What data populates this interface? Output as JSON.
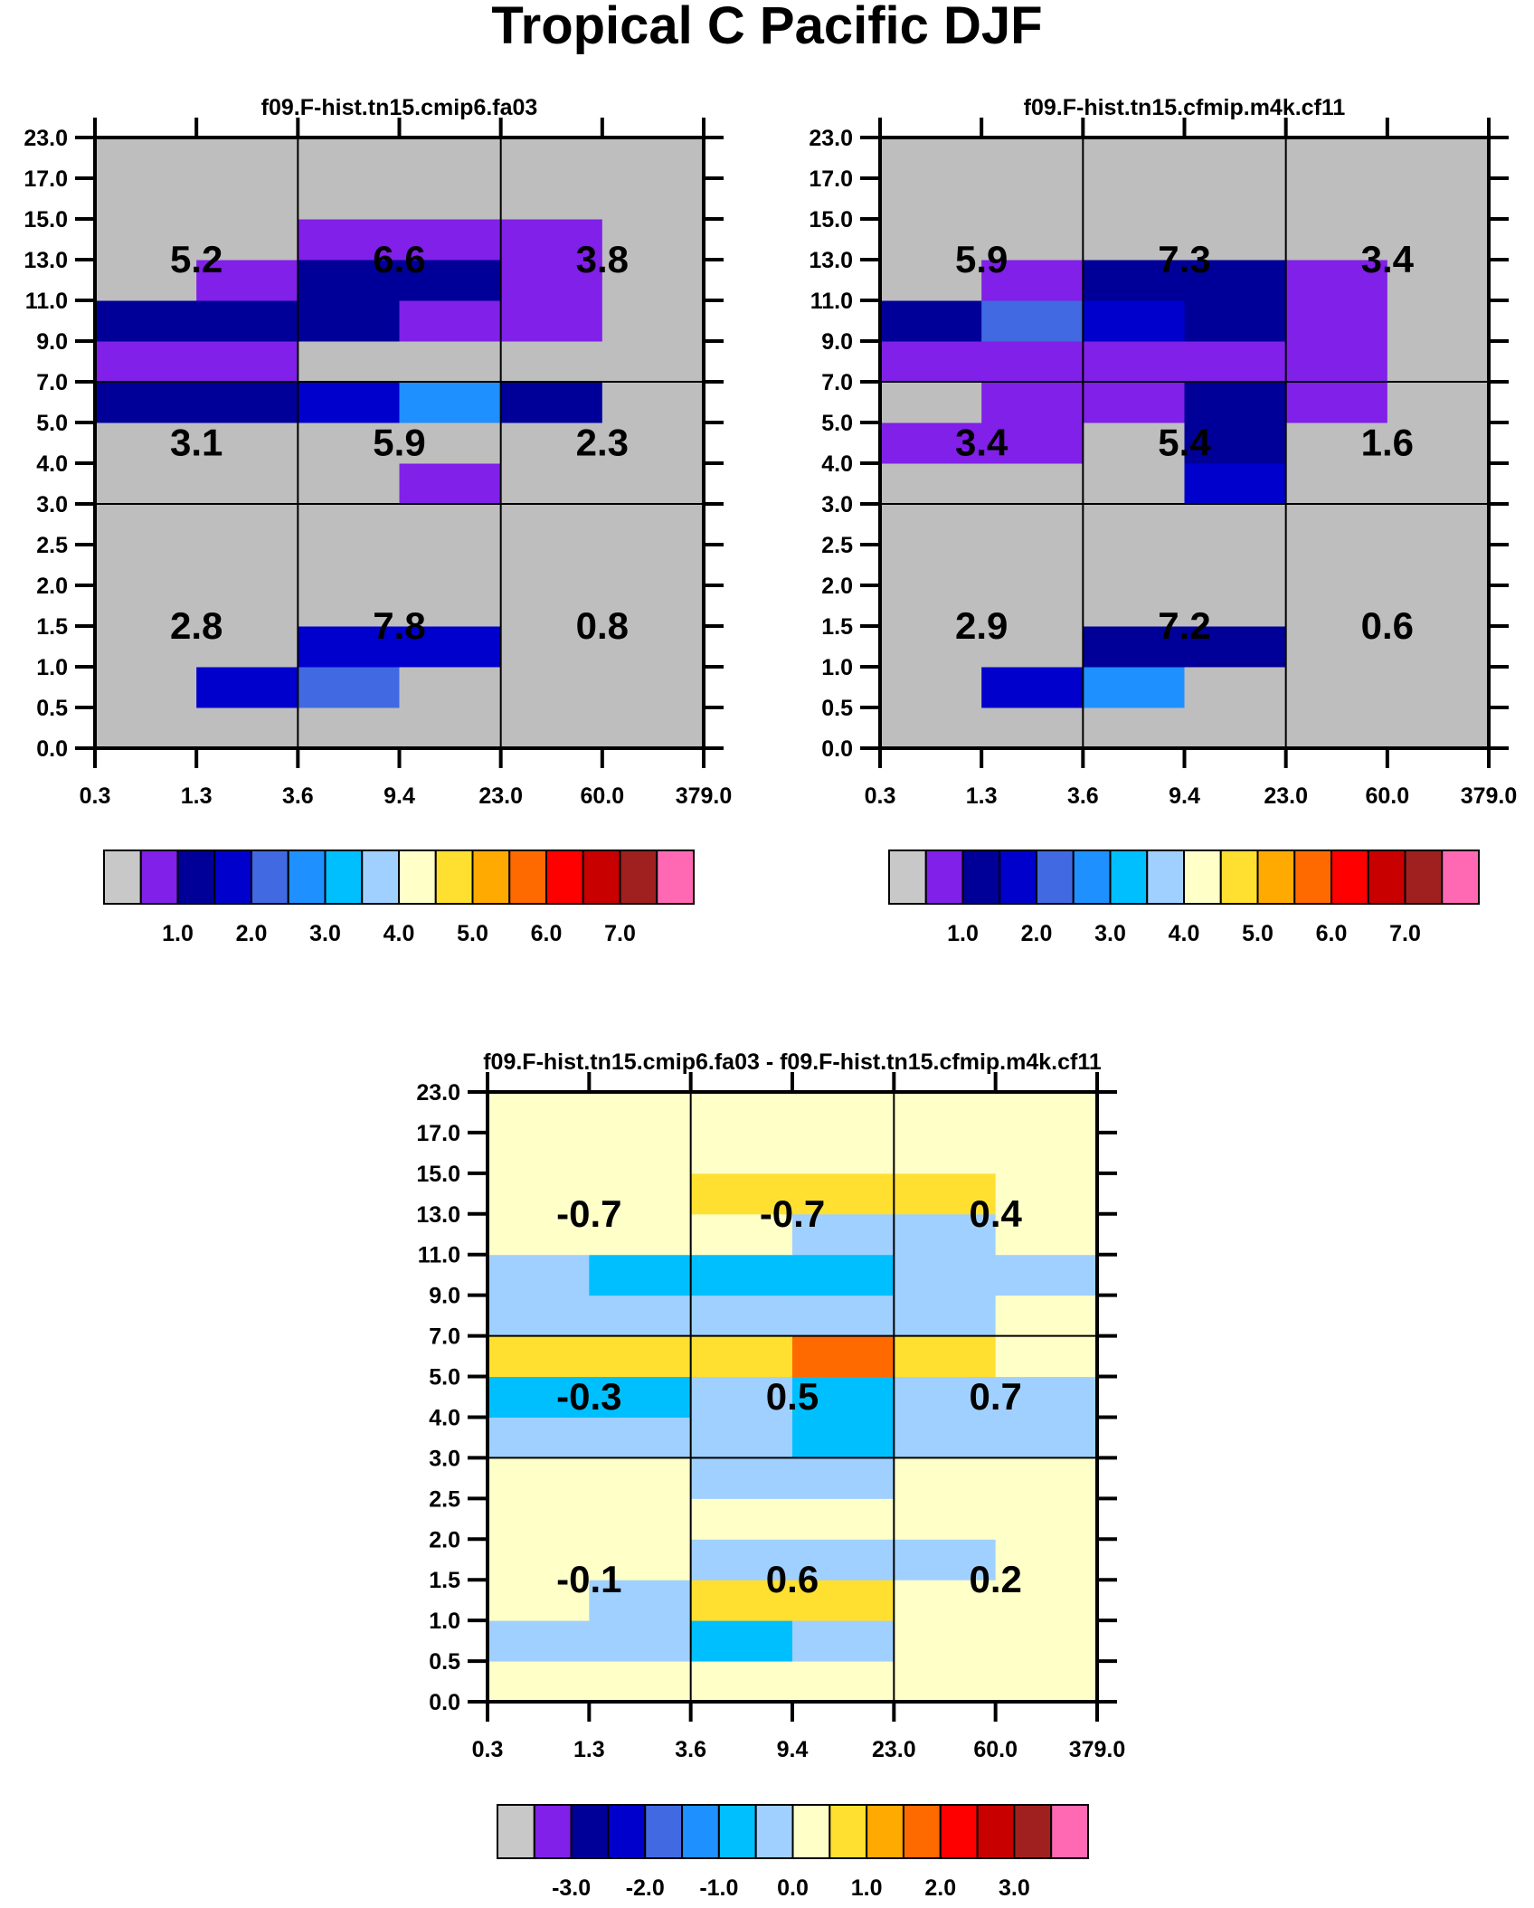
{
  "title": "Tropical C Pacific DJF",
  "palette": [
    "#C8C8C8",
    "#8020E8",
    "#000099",
    "#0000CC",
    "#4169E1",
    "#1E90FF",
    "#00BFFF",
    "#A0D0FF",
    "#FFFFC8",
    "#FFE030",
    "#FFAA00",
    "#FF6A00",
    "#FF0000",
    "#C80000",
    "#A02020",
    "#FF69B4"
  ],
  "plot_background": "#BEBEBE",
  "chart_data": [
    {
      "type": "heatmap",
      "title": "f09.F-hist.tn15.cmip6.fa03",
      "x_ticks": [
        "0.3",
        "1.3",
        "3.6",
        "9.4",
        "23.0",
        "60.0",
        "379.0"
      ],
      "y_ticks": [
        "0.0",
        "0.5",
        "1.0",
        "1.5",
        "2.0",
        "2.5",
        "3.0",
        "4.0",
        "5.0",
        "7.0",
        "9.0",
        "11.0",
        "13.0",
        "15.0",
        "17.0",
        "23.0"
      ],
      "cells_bottom_to_top": [
        [
          0,
          0,
          0,
          0,
          0,
          0
        ],
        [
          0,
          3,
          4,
          0,
          0,
          0
        ],
        [
          0,
          0,
          3,
          3,
          0,
          0
        ],
        [
          0,
          0,
          0,
          0,
          0,
          0
        ],
        [
          0,
          0,
          0,
          0,
          0,
          0
        ],
        [
          0,
          0,
          0,
          0,
          0,
          0
        ],
        [
          0,
          0,
          0,
          1,
          0,
          0
        ],
        [
          0,
          0,
          0,
          0,
          0,
          0
        ],
        [
          2,
          2,
          3,
          5,
          2,
          0
        ],
        [
          1,
          1,
          0,
          0,
          0,
          0
        ],
        [
          2,
          2,
          2,
          1,
          1,
          0
        ],
        [
          0,
          1,
          2,
          2,
          1,
          0
        ],
        [
          0,
          0,
          1,
          1,
          1,
          0
        ],
        [
          0,
          0,
          0,
          0,
          0,
          0
        ],
        [
          0,
          0,
          0,
          0,
          0,
          0
        ]
      ],
      "region_values_top_to_bottom": [
        [
          "5.2",
          "6.6",
          "3.8"
        ],
        [
          "3.1",
          "5.9",
          "2.3"
        ],
        [
          "2.8",
          "7.8",
          "0.8"
        ]
      ],
      "colorbar_labels": [
        "1.0",
        "2.0",
        "3.0",
        "4.0",
        "5.0",
        "6.0",
        "7.0"
      ]
    },
    {
      "type": "heatmap",
      "title": "f09.F-hist.tn15.cfmip.m4k.cf11",
      "x_ticks": [
        "0.3",
        "1.3",
        "3.6",
        "9.4",
        "23.0",
        "60.0",
        "379.0"
      ],
      "y_ticks": [
        "0.0",
        "0.5",
        "1.0",
        "1.5",
        "2.0",
        "2.5",
        "3.0",
        "4.0",
        "5.0",
        "7.0",
        "9.0",
        "11.0",
        "13.0",
        "15.0",
        "17.0",
        "23.0"
      ],
      "cells_bottom_to_top": [
        [
          0,
          0,
          0,
          0,
          0,
          0
        ],
        [
          0,
          3,
          5,
          0,
          0,
          0
        ],
        [
          0,
          0,
          2,
          2,
          0,
          0
        ],
        [
          0,
          0,
          0,
          0,
          0,
          0
        ],
        [
          0,
          0,
          0,
          0,
          0,
          0
        ],
        [
          0,
          0,
          0,
          0,
          0,
          0
        ],
        [
          0,
          0,
          0,
          3,
          0,
          0
        ],
        [
          1,
          1,
          0,
          2,
          0,
          0
        ],
        [
          0,
          1,
          1,
          2,
          1,
          0
        ],
        [
          1,
          1,
          1,
          1,
          1,
          0
        ],
        [
          2,
          4,
          3,
          2,
          1,
          0
        ],
        [
          0,
          1,
          2,
          2,
          1,
          0
        ],
        [
          0,
          0,
          0,
          0,
          0,
          0
        ],
        [
          0,
          0,
          0,
          0,
          0,
          0
        ],
        [
          0,
          0,
          0,
          0,
          0,
          0
        ]
      ],
      "region_values_top_to_bottom": [
        [
          "5.9",
          "7.3",
          "3.4"
        ],
        [
          "3.4",
          "5.4",
          "1.6"
        ],
        [
          "2.9",
          "7.2",
          "0.6"
        ]
      ],
      "colorbar_labels": [
        "1.0",
        "2.0",
        "3.0",
        "4.0",
        "5.0",
        "6.0",
        "7.0"
      ]
    },
    {
      "type": "heatmap",
      "title": "f09.F-hist.tn15.cmip6.fa03 - f09.F-hist.tn15.cfmip.m4k.cf11",
      "x_ticks": [
        "0.3",
        "1.3",
        "3.6",
        "9.4",
        "23.0",
        "60.0",
        "379.0"
      ],
      "y_ticks": [
        "0.0",
        "0.5",
        "1.0",
        "1.5",
        "2.0",
        "2.5",
        "3.0",
        "4.0",
        "5.0",
        "7.0",
        "9.0",
        "11.0",
        "13.0",
        "15.0",
        "17.0",
        "23.0"
      ],
      "cells_bottom_to_top": [
        [
          8,
          8,
          8,
          8,
          8,
          8
        ],
        [
          7,
          7,
          6,
          7,
          8,
          8
        ],
        [
          8,
          7,
          9,
          9,
          8,
          8
        ],
        [
          8,
          8,
          7,
          7,
          7,
          8
        ],
        [
          8,
          8,
          8,
          8,
          8,
          8
        ],
        [
          8,
          8,
          7,
          7,
          8,
          8
        ],
        [
          7,
          7,
          7,
          6,
          7,
          7
        ],
        [
          6,
          6,
          7,
          6,
          7,
          7
        ],
        [
          9,
          9,
          9,
          11,
          9,
          8
        ],
        [
          7,
          7,
          7,
          7,
          7,
          8
        ],
        [
          7,
          6,
          6,
          6,
          7,
          7
        ],
        [
          8,
          8,
          8,
          7,
          7,
          8
        ],
        [
          8,
          8,
          9,
          9,
          9,
          8
        ],
        [
          8,
          8,
          8,
          8,
          8,
          8
        ],
        [
          8,
          8,
          8,
          8,
          8,
          8
        ]
      ],
      "region_values_top_to_bottom": [
        [
          "-0.7",
          "-0.7",
          "0.4"
        ],
        [
          "-0.3",
          "0.5",
          "0.7"
        ],
        [
          "-0.1",
          "0.6",
          "0.2"
        ]
      ],
      "colorbar_labels": [
        "-3.0",
        "-2.0",
        "-1.0",
        "0.0",
        "1.0",
        "2.0",
        "3.0"
      ]
    }
  ]
}
